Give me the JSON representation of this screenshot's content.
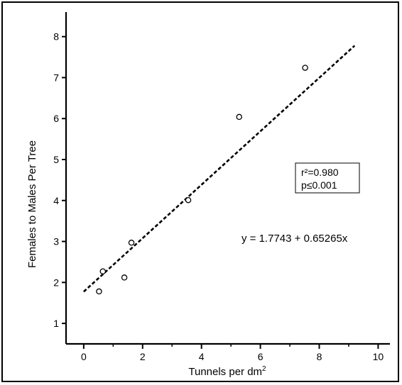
{
  "chart_data": {
    "type": "scatter",
    "title": "",
    "xlabel": "Tunnels per dm",
    "xlabel_sup": "2",
    "ylabel": "Females to Males Per Tree",
    "xlim": [
      -0.6,
      10.4
    ],
    "ylim": [
      0.5,
      8.6
    ],
    "xticks": [
      0,
      2,
      4,
      6,
      8,
      10
    ],
    "yticks": [
      1,
      2,
      3,
      4,
      5,
      6,
      7,
      8
    ],
    "grid": false,
    "series": [
      {
        "points": [
          {
            "x": 0.52,
            "y": 1.78
          },
          {
            "x": 0.65,
            "y": 2.27
          },
          {
            "x": 1.38,
            "y": 2.12
          },
          {
            "x": 1.62,
            "y": 2.97
          },
          {
            "x": 3.55,
            "y": 4.01
          },
          {
            "x": 5.28,
            "y": 6.04
          },
          {
            "x": 7.52,
            "y": 7.24
          }
        ]
      }
    ],
    "fit_line": {
      "style": "dashed",
      "x_range": [
        0,
        9.2
      ],
      "intercept": 1.7743,
      "slope": 0.65265
    },
    "annotations": {
      "r2": "r²=0.980",
      "p": "p≤0.001",
      "equation": "y = 1.7743 + 0.65265x"
    }
  }
}
